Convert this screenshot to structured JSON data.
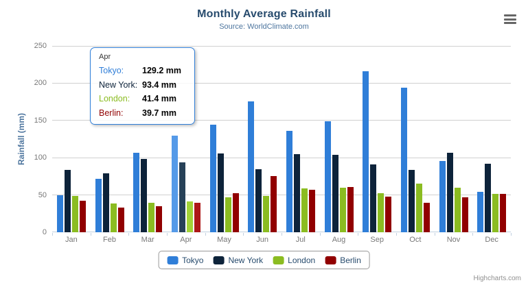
{
  "credits": "Highcharts.com",
  "icons": {
    "context_menu": "hamburger-menu"
  },
  "colors": {
    "title": "#274b6d",
    "subtitle": "#4d759e",
    "axis_title": "#4d759e",
    "axis_labels": "#777777",
    "gridline": "#d0d0d0",
    "axis_line": "#c0d0e0",
    "legend_text": "#274b6d",
    "tooltip_border": "#2f7ed8",
    "credits_text": "#909090"
  },
  "chart_data": {
    "type": "bar",
    "title": "Monthly Average Rainfall",
    "subtitle": "Source: WorldClimate.com",
    "categories": [
      "Jan",
      "Feb",
      "Mar",
      "Apr",
      "May",
      "Jun",
      "Jul",
      "Aug",
      "Sep",
      "Oct",
      "Nov",
      "Dec"
    ],
    "series": [
      {
        "name": "Tokyo",
        "color": "#2f7ed8",
        "hover_color": "#559ae8",
        "values": [
          49.9,
          71.5,
          106.4,
          129.2,
          144.0,
          176.0,
          135.6,
          148.5,
          216.4,
          194.1,
          95.6,
          54.4
        ]
      },
      {
        "name": "New York",
        "color": "#0d233a",
        "hover_color": "#274158",
        "values": [
          83.6,
          78.8,
          98.5,
          93.4,
          106.0,
          84.5,
          105.0,
          104.3,
          91.2,
          83.5,
          106.6,
          92.3
        ]
      },
      {
        "name": "London",
        "color": "#8bbc21",
        "hover_color": "#a2d337",
        "values": [
          48.9,
          38.8,
          39.3,
          41.4,
          47.0,
          48.3,
          59.0,
          59.6,
          52.4,
          65.2,
          59.3,
          51.2
        ]
      },
      {
        "name": "Berlin",
        "color": "#910000",
        "hover_color": "#ad1717",
        "values": [
          42.4,
          33.2,
          34.5,
          39.7,
          52.6,
          75.5,
          57.4,
          60.4,
          47.6,
          39.1,
          46.8,
          51.1
        ]
      }
    ],
    "xlabel": "",
    "ylabel": "Rainfall (mm)",
    "ylim": [
      0,
      250
    ],
    "yticks": [
      0,
      50,
      100,
      150,
      200,
      250
    ],
    "grid": true,
    "legend_position": "bottom",
    "hovered_category": "Apr"
  },
  "tooltip": {
    "header": "Apr",
    "unit": "mm",
    "rows": [
      {
        "name": "Tokyo",
        "value": "129.2"
      },
      {
        "name": "New York",
        "value": "93.4"
      },
      {
        "name": "London",
        "value": "41.4"
      },
      {
        "name": "Berlin",
        "value": "39.7"
      }
    ]
  }
}
